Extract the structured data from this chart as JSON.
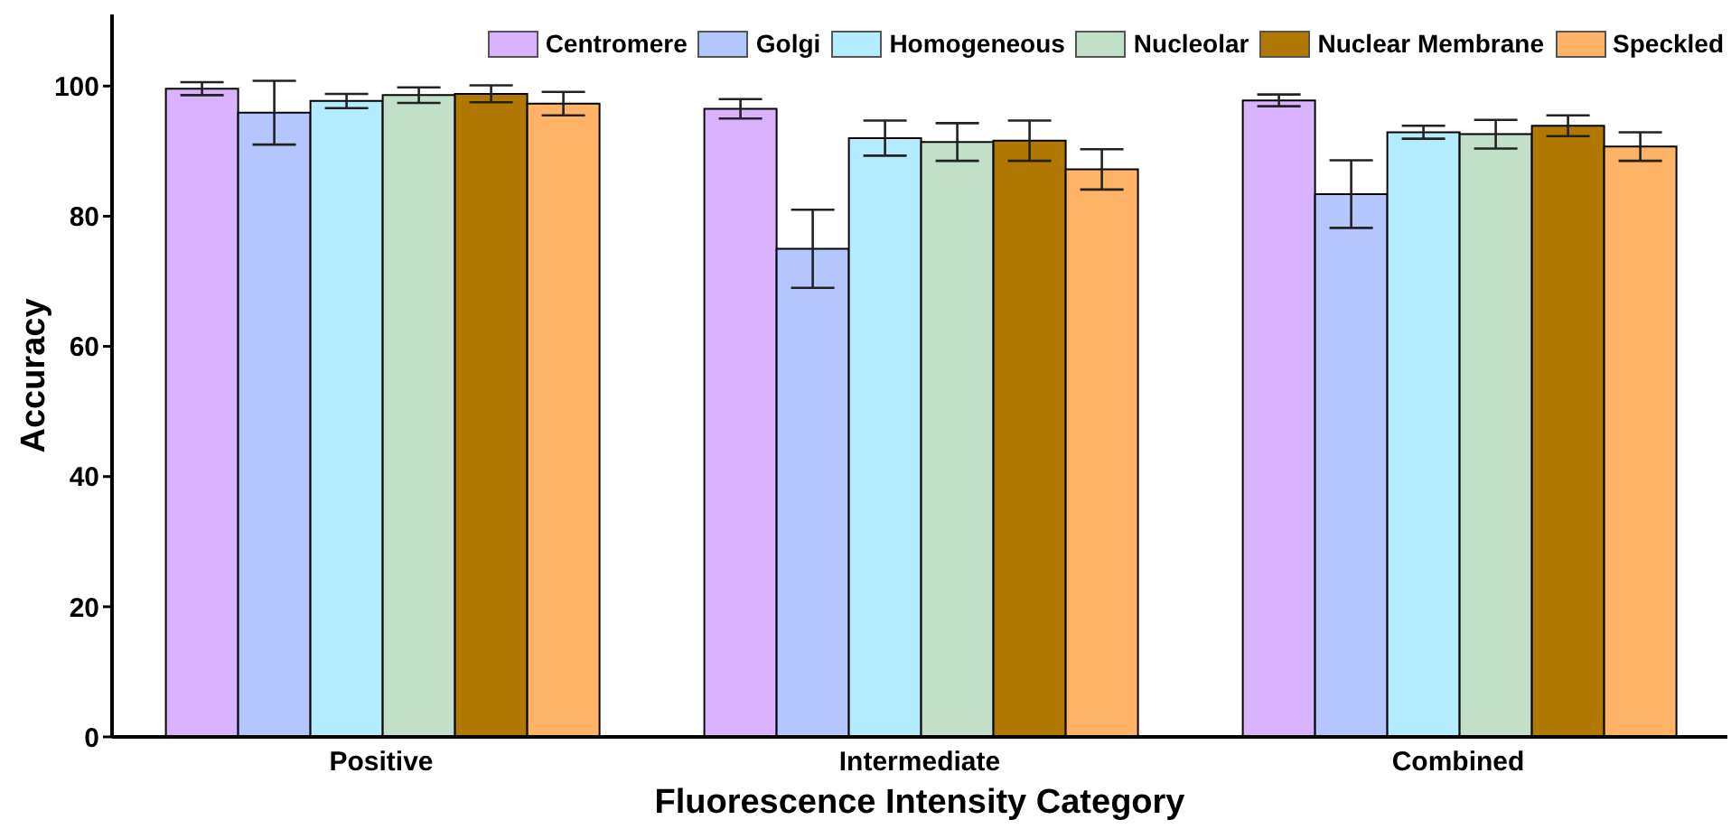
{
  "chart_data": {
    "type": "bar",
    "xlabel": "Fluorescence Intensity Category",
    "ylabel": "Accuracy",
    "categories": [
      "Positive",
      "Intermediate",
      "Combined"
    ],
    "series": [
      {
        "name": "Centromere",
        "color": "#d9b3ff",
        "values": [
          99.6,
          96.5,
          97.8
        ],
        "errors": [
          1,
          1.5,
          0.9
        ]
      },
      {
        "name": "Golgi",
        "color": "#b3c6ff",
        "values": [
          95.9,
          75,
          83.4
        ],
        "errors": [
          4.9,
          6,
          5.2
        ]
      },
      {
        "name": "Homogeneous",
        "color": "#b3ecff",
        "values": [
          97.7,
          92,
          92.9
        ],
        "errors": [
          1.1,
          2.7,
          1
        ]
      },
      {
        "name": "Nucleolar",
        "color": "#c2dfc8",
        "values": [
          98.6,
          91.4,
          92.6
        ],
        "errors": [
          1.2,
          2.9,
          2.2
        ]
      },
      {
        "name": "Nuclear Membrane",
        "color": "#b07800",
        "values": [
          98.8,
          91.6,
          93.9
        ],
        "errors": [
          1.3,
          3.1,
          1.6
        ]
      },
      {
        "name": "Speckled",
        "color": "#ffb366",
        "values": [
          97.3,
          87.2,
          90.7
        ],
        "errors": [
          1.8,
          3.1,
          2.2
        ]
      }
    ],
    "ylim": [
      0,
      111
    ],
    "yticks": [
      0,
      20,
      40,
      60,
      80,
      100
    ],
    "grid": false,
    "legend": "top right"
  }
}
